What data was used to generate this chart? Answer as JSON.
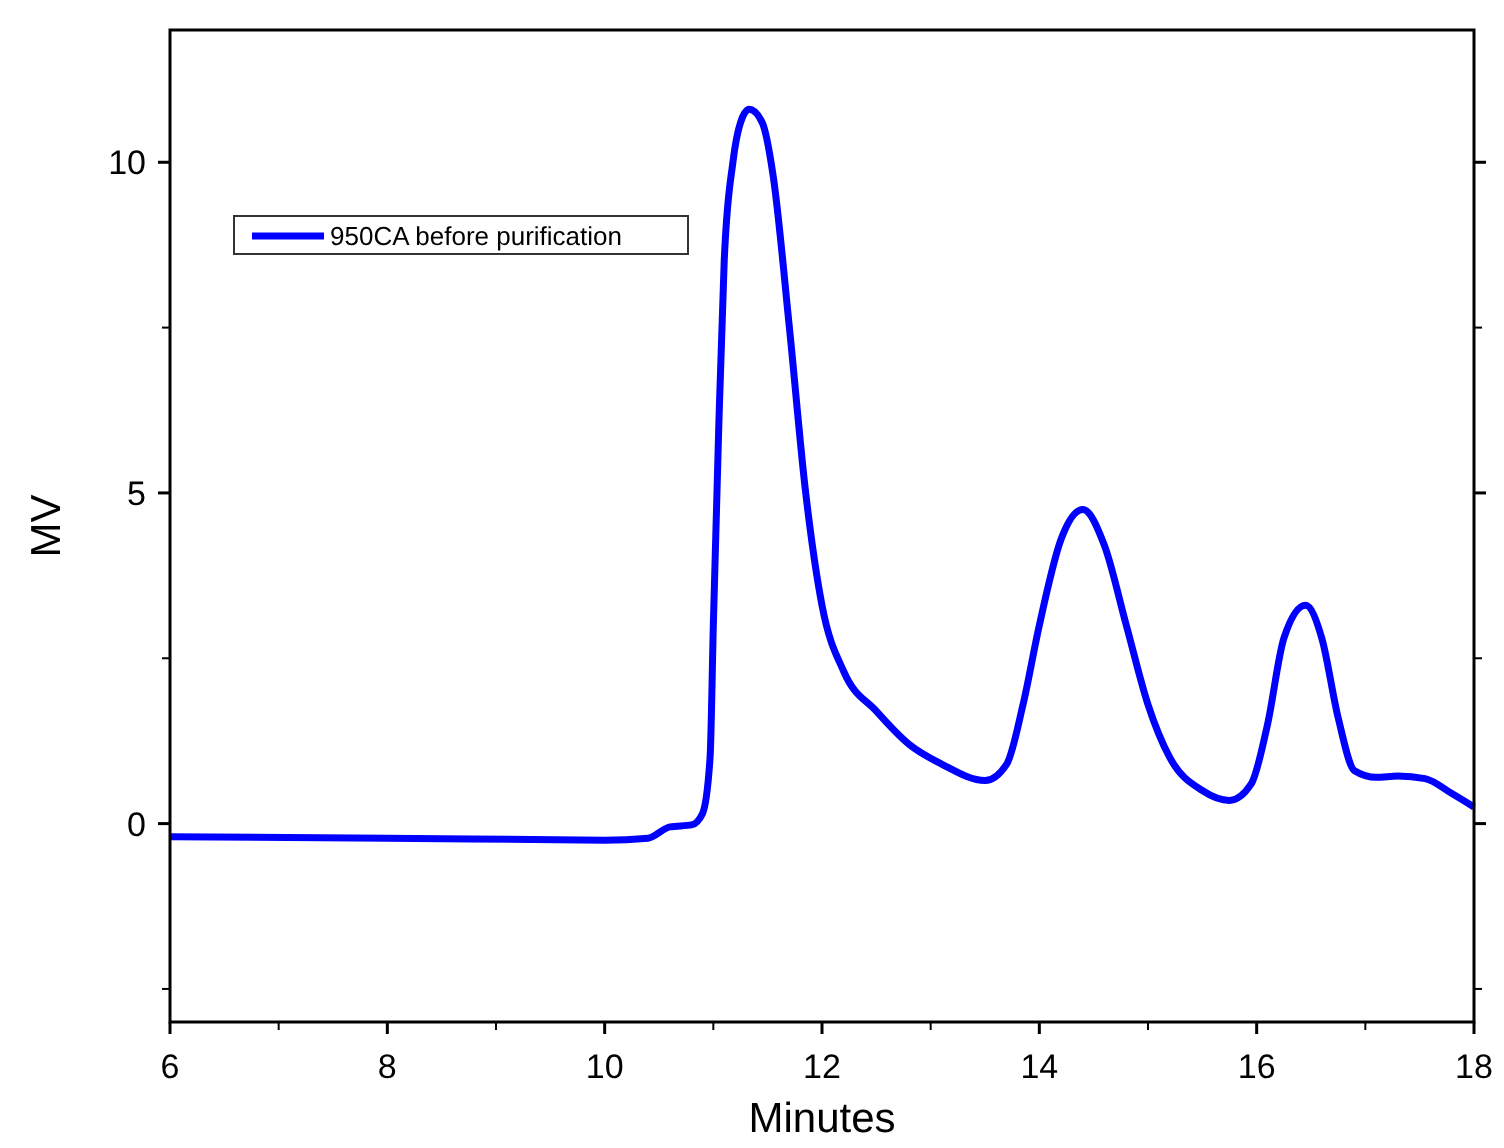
{
  "chart_data": {
    "type": "line",
    "xlabel": "Minutes",
    "ylabel": "MV",
    "xlim": [
      6,
      18
    ],
    "ylim": [
      -3,
      12
    ],
    "xticks": [
      6,
      8,
      10,
      12,
      14,
      16,
      18
    ],
    "yticks": [
      0,
      5,
      10
    ],
    "legend": "top left",
    "grid": false,
    "line_style": "solid",
    "series": [
      {
        "name": "950CA before purification",
        "color": "#0000ff",
        "x": [
          6,
          8,
          10,
          10.4,
          10.6,
          10.8,
          10.9,
          10.97,
          11.0,
          11.05,
          11.1,
          11.18,
          11.25,
          11.33,
          11.45,
          11.55,
          11.7,
          11.85,
          12.0,
          12.2,
          12.5,
          12.8,
          13.1,
          13.5,
          13.7,
          13.85,
          14.0,
          14.2,
          14.4,
          14.6,
          14.8,
          15.0,
          15.2,
          15.5,
          15.75,
          15.95,
          16.1,
          16.25,
          16.45,
          16.6,
          16.75,
          16.9,
          17.1,
          17.3,
          17.55,
          17.8,
          18
        ],
        "values": [
          -0.2,
          -0.22,
          -0.25,
          -0.22,
          -0.05,
          -0.02,
          0.15,
          1,
          3,
          6,
          8.5,
          10,
          10.6,
          10.8,
          10.6,
          9.8,
          7.5,
          5,
          3.3,
          2.3,
          1.7,
          1.2,
          0.9,
          0.65,
          0.9,
          1.8,
          3.0,
          4.3,
          4.75,
          4.2,
          3.0,
          1.8,
          1.0,
          0.5,
          0.35,
          0.6,
          1.5,
          2.8,
          3.3,
          2.8,
          1.6,
          0.8,
          0.7,
          0.72,
          0.68,
          0.45,
          0.25
        ]
      }
    ]
  }
}
